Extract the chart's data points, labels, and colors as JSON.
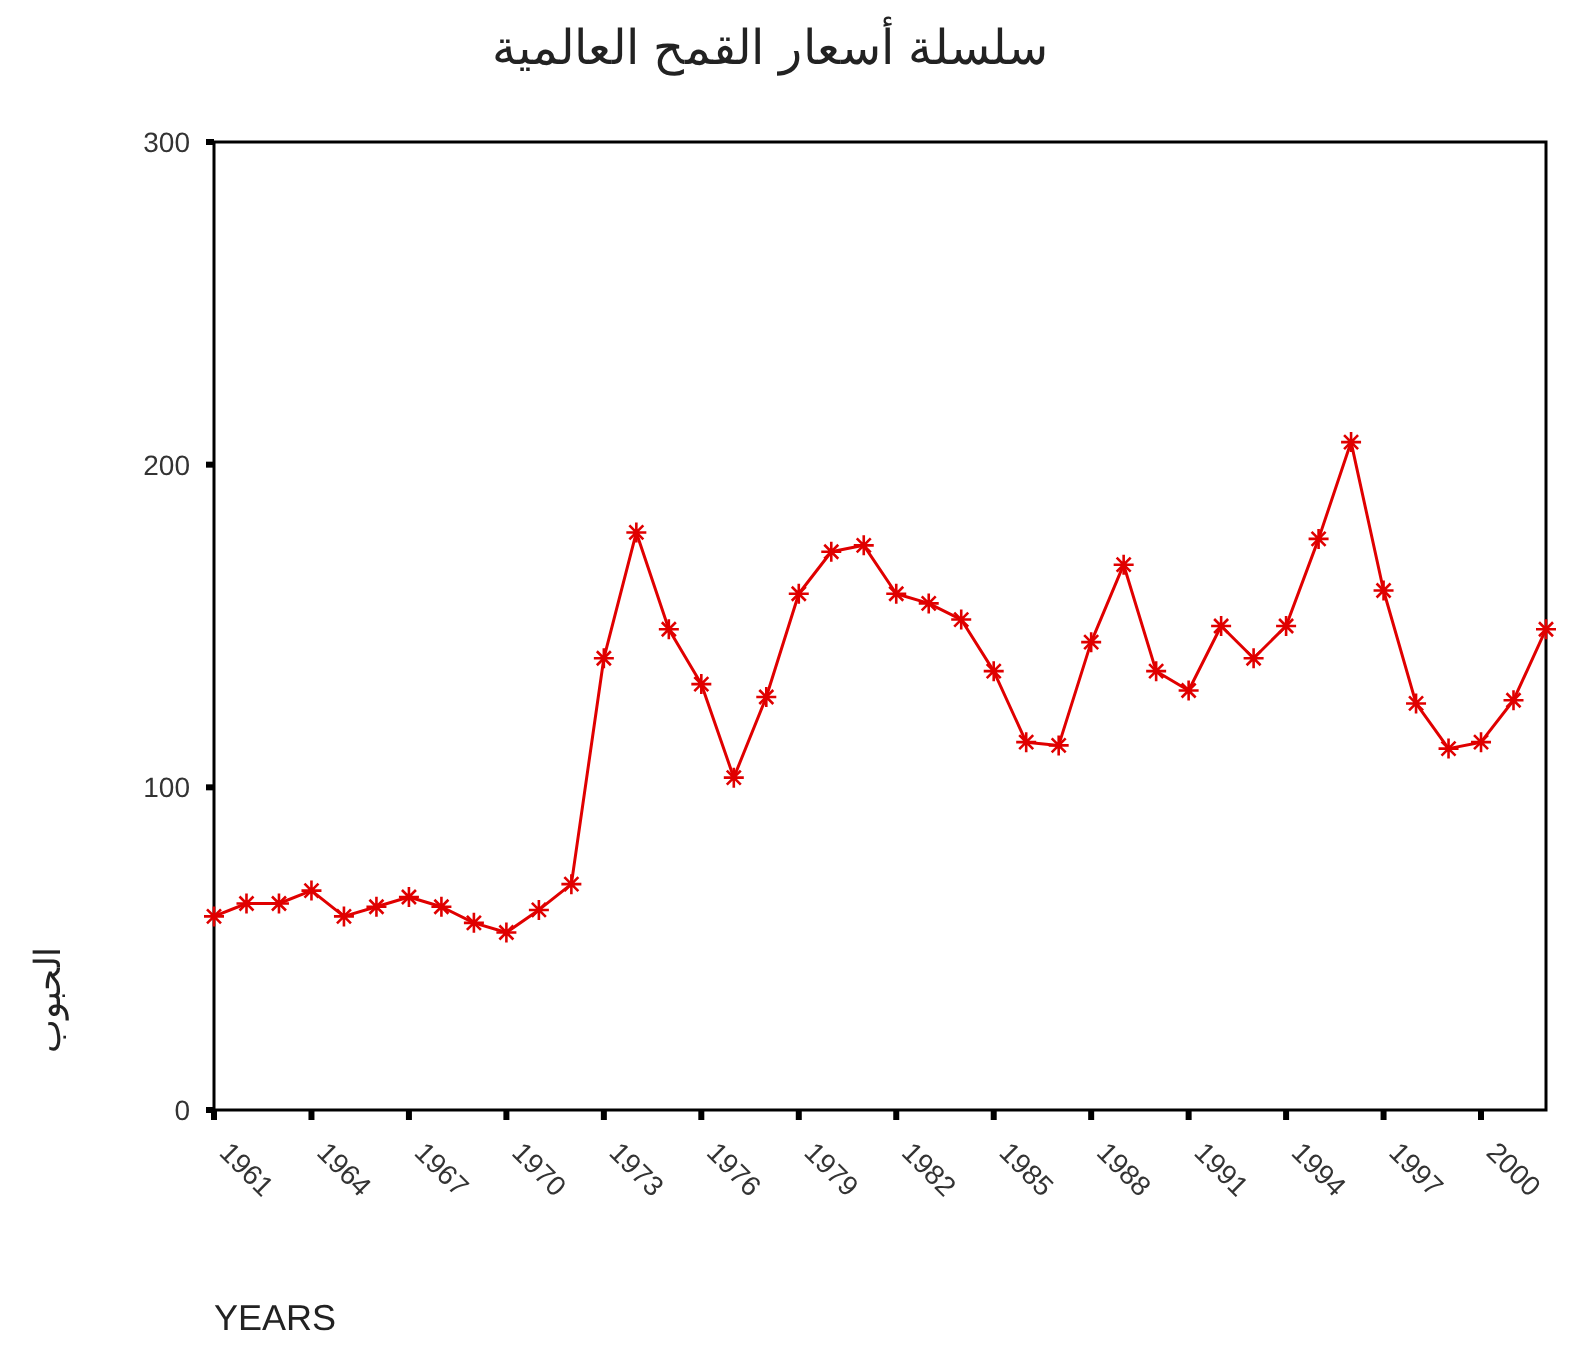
{
  "chart_data": {
    "type": "line",
    "title": "سلسلة أسعار القمح العالمية",
    "xlabel": "YEARS",
    "ylabel": "الحبوب",
    "x": [
      1961,
      1962,
      1963,
      1964,
      1965,
      1966,
      1967,
      1968,
      1969,
      1970,
      1971,
      1972,
      1973,
      1974,
      1975,
      1976,
      1977,
      1978,
      1979,
      1980,
      1981,
      1982,
      1983,
      1984,
      1985,
      1986,
      1987,
      1988,
      1989,
      1990,
      1991,
      1992,
      1993,
      1994,
      1995,
      1996,
      1997,
      1998,
      1999,
      2000,
      2001,
      2002
    ],
    "series": [
      {
        "color": "#e00000",
        "values": [
          60,
          64,
          64,
          68,
          60,
          63,
          66,
          63,
          58,
          55,
          62,
          70,
          140,
          179,
          149,
          132,
          103,
          128,
          160,
          173,
          175,
          160,
          157,
          152,
          136,
          114,
          113,
          145,
          169,
          136,
          130,
          150,
          140,
          150,
          177,
          207,
          161,
          126,
          112,
          114,
          127,
          149
        ]
      }
    ],
    "xlim": [
      1961,
      2002
    ],
    "ylim": [
      0,
      300
    ],
    "xticks": [
      1961,
      1964,
      1967,
      1970,
      1973,
      1976,
      1979,
      1982,
      1985,
      1988,
      1991,
      1994,
      1997,
      2000
    ],
    "yticks": [
      0,
      100,
      200,
      300
    ],
    "grid": false,
    "marker": "cross",
    "line_style": "solid"
  }
}
